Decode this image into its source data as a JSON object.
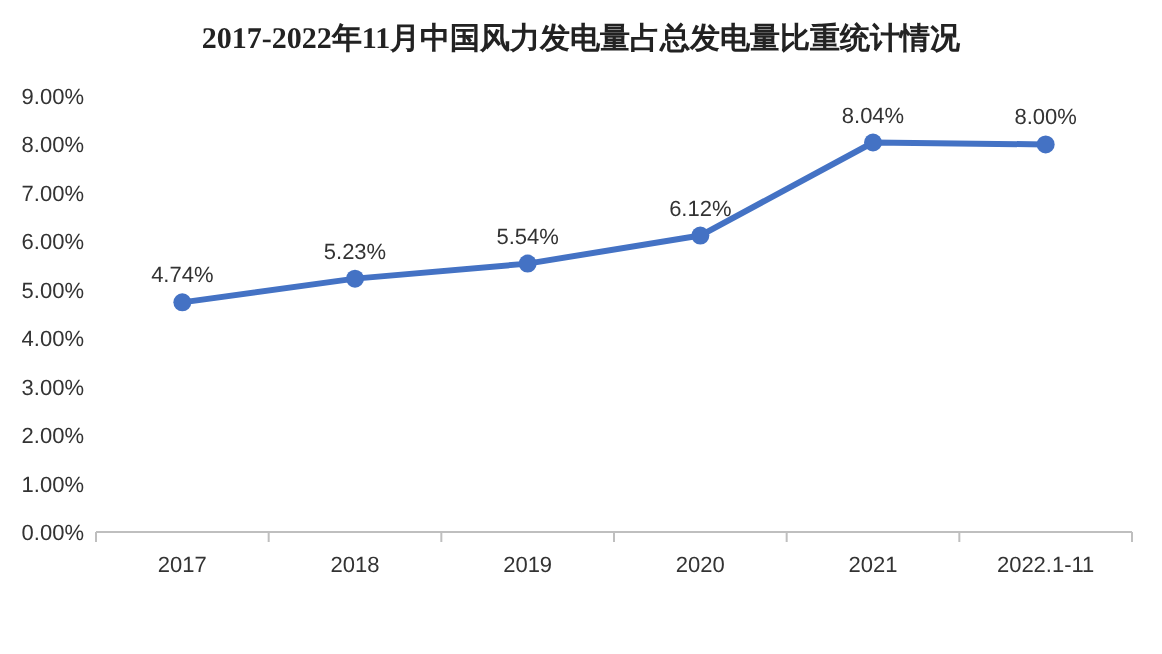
{
  "chart_data": {
    "type": "line",
    "title": "2017-2022年11月中国风力发电量占总发电量比重统计情况",
    "categories": [
      "2017",
      "2018",
      "2019",
      "2020",
      "2021",
      "2022.1-11"
    ],
    "series": [
      {
        "color": "#4472c4",
        "values": [
          4.74,
          5.23,
          5.54,
          6.12,
          8.04,
          8.0
        ],
        "value_labels": [
          "4.74%",
          "5.23%",
          "5.54%",
          "6.12%",
          "8.04%",
          "8.00%"
        ]
      }
    ],
    "ylim": [
      0,
      9
    ],
    "yticks": [
      {
        "value": 0,
        "label": "0.00%"
      },
      {
        "value": 1,
        "label": "1.00%"
      },
      {
        "value": 2,
        "label": "2.00%"
      },
      {
        "value": 3,
        "label": "3.00%"
      },
      {
        "value": 4,
        "label": "4.00%"
      },
      {
        "value": 5,
        "label": "5.00%"
      },
      {
        "value": 6,
        "label": "6.00%"
      },
      {
        "value": 7,
        "label": "7.00%"
      },
      {
        "value": 8,
        "label": "8.00%"
      },
      {
        "value": 9,
        "label": "9.00%"
      }
    ],
    "marker": "circle",
    "line_style": "solid"
  }
}
